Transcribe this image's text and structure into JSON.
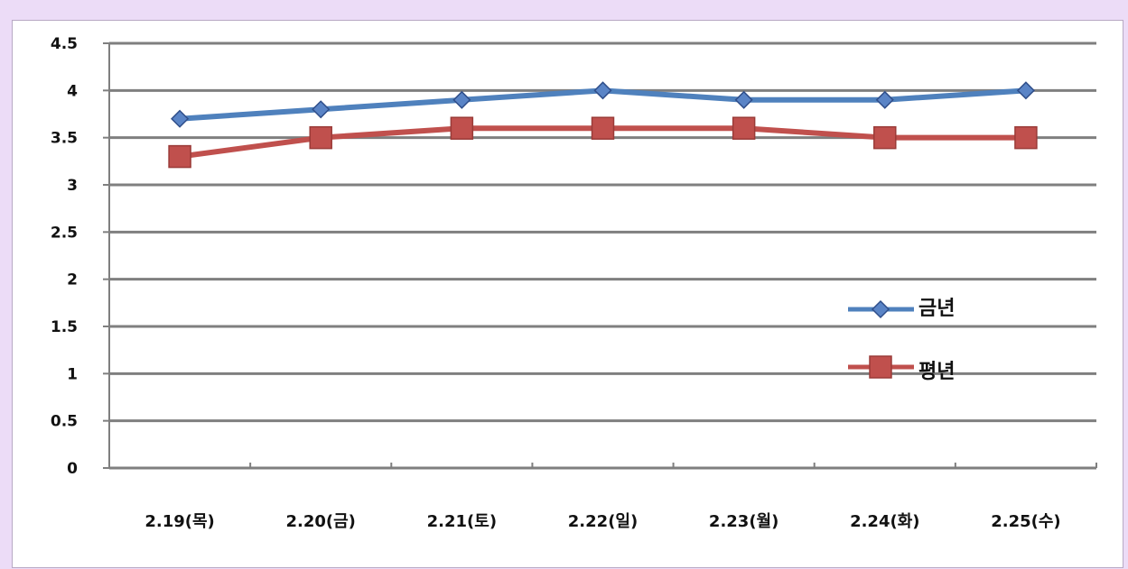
{
  "chart_data": {
    "type": "line",
    "categories": [
      "2.19(목)",
      "2.20(금)",
      "2.21(토)",
      "2.22(일)",
      "2.23(월)",
      "2.24(화)",
      "2.25(수)"
    ],
    "series": [
      {
        "name": "금년",
        "values": [
          3.7,
          3.8,
          3.9,
          4.0,
          3.9,
          3.9,
          4.0
        ],
        "color": "#4f81bd",
        "marker": "diamond"
      },
      {
        "name": "평년",
        "values": [
          3.3,
          3.5,
          3.6,
          3.6,
          3.6,
          3.5,
          3.5
        ],
        "color": "#c0504d",
        "marker": "square"
      }
    ],
    "ylim": [
      0,
      4.5
    ],
    "yticks": [
      "0",
      "0.5",
      "1",
      "1.5",
      "2",
      "2.5",
      "3",
      "3.5",
      "4",
      "4.5"
    ],
    "grid": true,
    "legend": "right"
  }
}
